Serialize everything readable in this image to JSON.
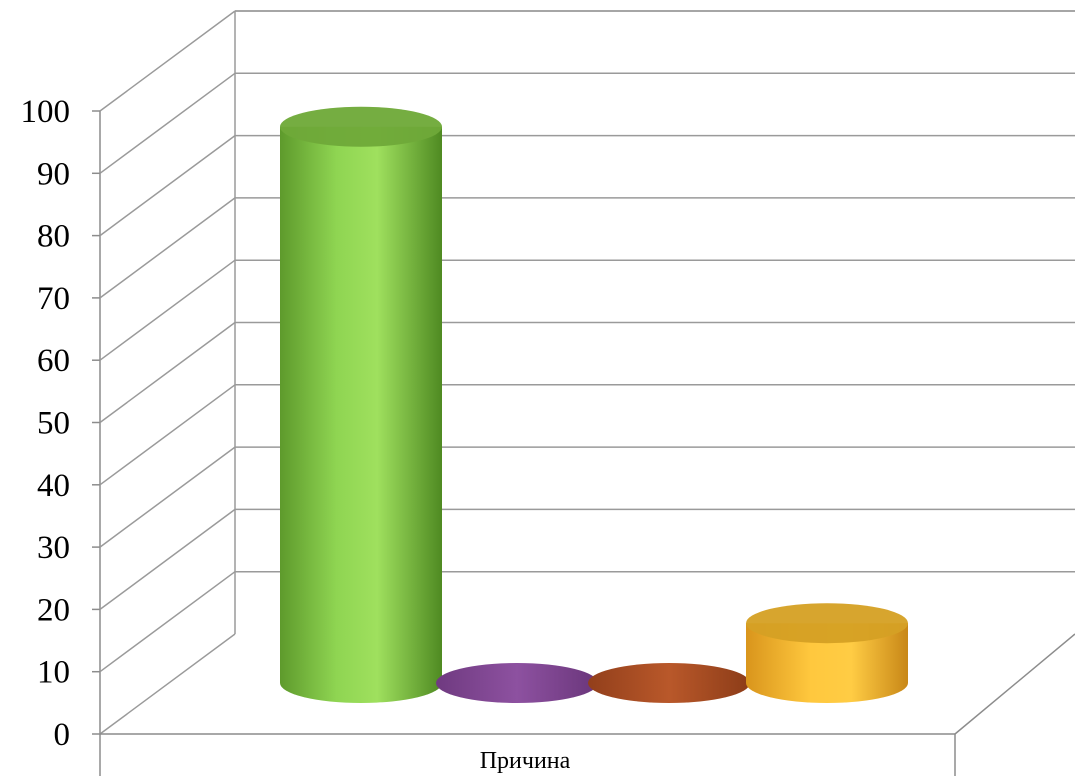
{
  "chart_data": {
    "type": "bar",
    "style": "3d-cylinder",
    "categories": [
      "Причина"
    ],
    "series": [
      {
        "values": [
          93
        ],
        "color": "#7fc241"
      },
      {
        "values": [
          0
        ],
        "color": "#8a4b9a"
      },
      {
        "values": [
          0
        ],
        "color": "#b35426"
      },
      {
        "values": [
          10
        ],
        "color": "#f4b82a"
      }
    ],
    "ylim": [
      0,
      100
    ],
    "yticks": [
      0,
      10,
      20,
      30,
      40,
      50,
      60,
      70,
      80,
      90,
      100
    ],
    "grid": true,
    "legend": "none",
    "title": "",
    "xlabel": "",
    "ylabel": ""
  }
}
